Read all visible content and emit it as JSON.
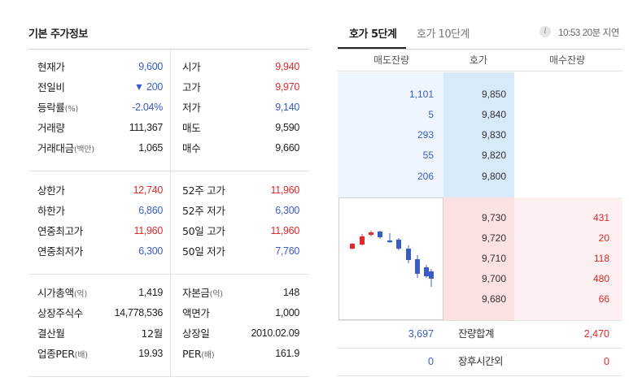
{
  "basic": {
    "title": "기본 주가정보",
    "rows1": [
      {
        "l1": "현재가",
        "v1": "9,600",
        "l2": "시가",
        "v2": "9,940"
      },
      {
        "l1": "전일비",
        "v1": "▼ 200",
        "l2": "고가",
        "v2": "9,970"
      },
      {
        "l1": "등락률",
        "u1": "(%)",
        "v1": "-2.04%",
        "l2": "저가",
        "v2": "9,140"
      },
      {
        "l1": "거래량",
        "v1": "111,367",
        "l2": "매도",
        "v2": "9,590"
      },
      {
        "l1": "거래대금",
        "u1": "(백만)",
        "v1": "1,065",
        "l2": "매수",
        "v2": "9,660"
      }
    ],
    "rows2": [
      {
        "l1": "상한가",
        "v1": "12,740",
        "l2": "52주 고가",
        "v2": "11,960"
      },
      {
        "l1": "하한가",
        "v1": "6,860",
        "l2": "52주 저가",
        "v2": "6,300"
      },
      {
        "l1": "연중최고가",
        "v1": "11,960",
        "l2": "50일 고가",
        "v2": "11,960"
      },
      {
        "l1": "연중최저가",
        "v1": "6,300",
        "l2": "50일 저가",
        "v2": "7,760"
      }
    ],
    "rows3": [
      {
        "l1": "시가총액",
        "u1": "(억)",
        "v1": "1,419",
        "l2": "자본금",
        "u2": "(억)",
        "v2": "148"
      },
      {
        "l1": "상장주식수",
        "v1": "14,778,536",
        "l2": "액면가",
        "v2": "1,000"
      },
      {
        "l1": "결산월",
        "v1": "12월",
        "l2": "상장일",
        "v2": "2010.02.09"
      },
      {
        "l1": "업종PER",
        "u1": "(배)",
        "v1": "19.93",
        "l2": "PER",
        "u2": "(배)",
        "v2": "161.9"
      }
    ]
  },
  "orderbook": {
    "tab_5": "호가 5단계",
    "tab_10": "호가 10단계",
    "info_icon": "i",
    "delay_text": "10:53 20분 지연",
    "headers": {
      "ask": "매도잔량",
      "price": "호가",
      "bid": "매수잔량"
    },
    "asks": [
      {
        "qty": "1,101",
        "price": "9,850"
      },
      {
        "qty": "5",
        "price": "9,840"
      },
      {
        "qty": "293",
        "price": "9,830"
      },
      {
        "qty": "55",
        "price": "9,820"
      },
      {
        "qty": "206",
        "price": "9,800"
      }
    ],
    "bids": [
      {
        "price": "9,730",
        "qty": "431"
      },
      {
        "price": "9,720",
        "qty": "20"
      },
      {
        "price": "9,710",
        "qty": "118"
      },
      {
        "price": "9,700",
        "qty": "480"
      },
      {
        "price": "9,680",
        "qty": "66"
      }
    ],
    "total": {
      "ask": "3,697",
      "label": "잔량합계",
      "bid": "2,470"
    },
    "after_hours": {
      "ask": "0",
      "label": "장후시간외",
      "bid": "0"
    }
  },
  "colors": {
    "up": "#e0272b",
    "down": "#3a5cc6"
  }
}
